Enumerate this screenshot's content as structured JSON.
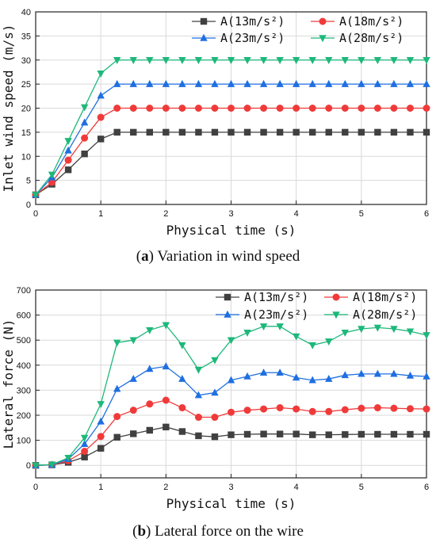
{
  "chart_data": [
    {
      "type": "line",
      "caption_letter": "a",
      "caption_text": "Variation in wind speed",
      "xlabel": "Physical time  (s)",
      "ylabel": "Inlet wind speed  (m/s)",
      "xlim": [
        0,
        6
      ],
      "ylim": [
        0,
        40
      ],
      "xticks": [
        0,
        1,
        2,
        3,
        4,
        5,
        6
      ],
      "yticks": [
        0,
        5,
        10,
        15,
        20,
        25,
        30,
        35,
        40
      ],
      "grid": true,
      "legend_position": "top-right",
      "x": [
        0,
        0.25,
        0.5,
        0.75,
        1.0,
        1.25,
        1.5,
        1.75,
        2.0,
        2.25,
        2.5,
        2.75,
        3.0,
        3.25,
        3.5,
        3.75,
        4.0,
        4.25,
        4.5,
        4.75,
        5.0,
        5.25,
        5.5,
        5.75,
        6.0
      ],
      "series": [
        {
          "name": "A(13m/s²)",
          "color": "#404040",
          "marker": "square",
          "values": [
            2,
            4.2,
            7.2,
            10.5,
            13.6,
            15,
            15,
            15,
            15,
            15,
            15,
            15,
            15,
            15,
            15,
            15,
            15,
            15,
            15,
            15,
            15,
            15,
            15,
            15,
            15
          ]
        },
        {
          "name": "A(18m/s²)",
          "color": "#f03a3a",
          "marker": "circle",
          "values": [
            2,
            4.6,
            9.2,
            13.8,
            18.1,
            20,
            20,
            20,
            20,
            20,
            20,
            20,
            20,
            20,
            20,
            20,
            20,
            20,
            20,
            20,
            20,
            20,
            20,
            20,
            20
          ]
        },
        {
          "name": "A(23m/s²)",
          "color": "#1f6fe0",
          "marker": "triangle-up",
          "values": [
            2,
            5.6,
            11.2,
            17,
            22.6,
            25,
            25,
            25,
            25,
            25,
            25,
            25,
            25,
            25,
            25,
            25,
            25,
            25,
            25,
            25,
            25,
            25,
            25,
            25,
            25
          ]
        },
        {
          "name": "A(28m/s²)",
          "color": "#1db87a",
          "marker": "triangle-down",
          "values": [
            2,
            6.2,
            13.2,
            20.2,
            27.2,
            30,
            30,
            30,
            30,
            30,
            30,
            30,
            30,
            30,
            30,
            30,
            30,
            30,
            30,
            30,
            30,
            30,
            30,
            30,
            30
          ]
        }
      ]
    },
    {
      "type": "line",
      "caption_letter": "b",
      "caption_text": "Lateral force on the wire",
      "xlabel": "Physical time  (s)",
      "ylabel": "Lateral force  (N)",
      "xlim": [
        0,
        6
      ],
      "ylim": [
        -50,
        700
      ],
      "xticks": [
        0,
        1,
        2,
        3,
        4,
        5,
        6
      ],
      "yticks": [
        0,
        100,
        200,
        300,
        400,
        500,
        600,
        700
      ],
      "grid": true,
      "legend_position": "top-right",
      "x": [
        0,
        0.25,
        0.5,
        0.75,
        1.0,
        1.25,
        1.5,
        1.75,
        2.0,
        2.25,
        2.5,
        2.75,
        3.0,
        3.25,
        3.5,
        3.75,
        4.0,
        4.25,
        4.5,
        4.75,
        5.0,
        5.25,
        5.5,
        5.75,
        6.0
      ],
      "series": [
        {
          "name": "A(13m/s²)",
          "color": "#404040",
          "marker": "square",
          "values": [
            0,
            2,
            12,
            33,
            68,
            112,
            126,
            140,
            153,
            135,
            118,
            114,
            122,
            124,
            125,
            125,
            125,
            122,
            122,
            123,
            124,
            124,
            124,
            124,
            124
          ]
        },
        {
          "name": "A(18m/s²)",
          "color": "#f03a3a",
          "marker": "circle",
          "values": [
            0,
            2,
            18,
            56,
            115,
            195,
            220,
            245,
            260,
            230,
            192,
            192,
            212,
            220,
            225,
            230,
            225,
            215,
            215,
            222,
            228,
            230,
            228,
            226,
            225
          ]
        },
        {
          "name": "A(23m/s²)",
          "color": "#1f6fe0",
          "marker": "triangle-up",
          "values": [
            0,
            2,
            25,
            85,
            175,
            305,
            345,
            385,
            395,
            345,
            280,
            290,
            340,
            355,
            370,
            370,
            350,
            340,
            345,
            360,
            365,
            365,
            365,
            358,
            355
          ]
        },
        {
          "name": "A(28m/s²)",
          "color": "#1db87a",
          "marker": "triangle-down",
          "values": [
            0,
            3,
            30,
            110,
            245,
            490,
            500,
            540,
            560,
            480,
            382,
            420,
            500,
            530,
            555,
            555,
            515,
            480,
            495,
            530,
            545,
            550,
            545,
            535,
            520
          ]
        }
      ]
    }
  ]
}
